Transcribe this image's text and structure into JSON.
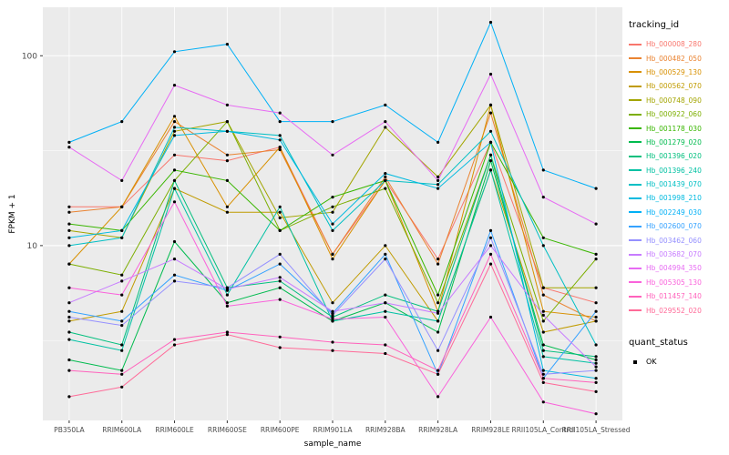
{
  "chart_data": {
    "type": "line",
    "title": "",
    "xlabel": "sample_name",
    "ylabel": "FPKM + 1",
    "yscale": "log10",
    "ylim": [
      1.2,
      180
    ],
    "yticks": [
      10,
      100
    ],
    "yticks_minor": [
      3.162,
      31.62
    ],
    "grid": true,
    "legend_position": "right",
    "panel_background": "#EBEBEB",
    "grid_color": "#FFFFFF",
    "axis_text_color": "#4D4D4D",
    "point_color": "#000000",
    "categories": [
      "PB350LA",
      "RRIM600LA",
      "RRIM600LE",
      "RRIM600SE",
      "RRIM600PE",
      "RRIM901LA",
      "RRIM928BA",
      "RRIM928LA",
      "RRIM928LE",
      "RRII105LA_Control",
      "RRII105LA_Stressed"
    ],
    "series": [
      {
        "name": "Hb_000008_280",
        "color": "#F8766D",
        "values": [
          16,
          16,
          30,
          28,
          33,
          9,
          22,
          8.5,
          35,
          6,
          5
        ]
      },
      {
        "name": "Hb_000482_050",
        "color": "#EA8331",
        "values": [
          15,
          16,
          45,
          30,
          32,
          9,
          23,
          8,
          50,
          5.5,
          4
        ]
      },
      {
        "name": "Hb_000529_130",
        "color": "#D89000",
        "values": [
          8,
          16,
          48,
          16,
          33,
          8.5,
          22,
          4.5,
          55,
          4.5,
          4.2
        ]
      },
      {
        "name": "Hb_000562_070",
        "color": "#C09B00",
        "values": [
          4,
          4.5,
          20,
          15,
          15,
          5,
          10,
          4,
          25,
          3.5,
          4
        ]
      },
      {
        "name": "Hb_000748_090",
        "color": "#A3A500",
        "values": [
          12,
          11,
          40,
          45,
          14,
          15,
          42,
          23,
          55,
          6,
          6
        ]
      },
      {
        "name": "Hb_000922_060",
        "color": "#7CAE00",
        "values": [
          8,
          7,
          22,
          45,
          12,
          16,
          20,
          5,
          30,
          4,
          8.5
        ]
      },
      {
        "name": "Hb_001178_030",
        "color": "#39B600",
        "values": [
          13,
          12,
          25,
          22,
          12,
          18,
          22,
          5.5,
          35,
          11,
          9
        ]
      },
      {
        "name": "Hb_001279_020",
        "color": "#00BB4E",
        "values": [
          2.5,
          2.2,
          10.5,
          5,
          6,
          4,
          5,
          3.5,
          28,
          3,
          2.5
        ]
      },
      {
        "name": "Hb_001396_020",
        "color": "#00BF7D",
        "values": [
          3.5,
          3,
          22,
          6,
          6.5,
          4.2,
          5.5,
          4.5,
          30,
          2.8,
          2.6
        ]
      },
      {
        "name": "Hb_001396_240",
        "color": "#00C1A3",
        "values": [
          3.2,
          2.8,
          20,
          5.5,
          16,
          4,
          4.5,
          4,
          25,
          2.6,
          2.4
        ]
      },
      {
        "name": "Hb_001439_070",
        "color": "#00BFC4",
        "values": [
          10,
          11,
          42,
          40,
          38,
          12,
          22,
          21,
          40,
          10,
          3
        ]
      },
      {
        "name": "Hb_001998_210",
        "color": "#00BAE0",
        "values": [
          11,
          12,
          38,
          40,
          36,
          13,
          24,
          20,
          35,
          2.2,
          2
        ]
      },
      {
        "name": "Hb_002249_030",
        "color": "#00B0F6",
        "values": [
          35,
          45,
          105,
          115,
          45,
          45,
          55,
          35,
          150,
          25,
          20
        ]
      },
      {
        "name": "Hb_002600_070",
        "color": "#35A2FF",
        "values": [
          4.5,
          4,
          7,
          5.8,
          8,
          4.4,
          9,
          2.1,
          12,
          2,
          4.5
        ]
      },
      {
        "name": "Hb_003462_060",
        "color": "#9590FF",
        "values": [
          4.2,
          3.8,
          6.5,
          6,
          9,
          4.3,
          8.5,
          2.8,
          11,
          2.1,
          2.2
        ]
      },
      {
        "name": "Hb_003682_070",
        "color": "#C77CFF",
        "values": [
          5,
          6.5,
          8.5,
          5.9,
          6.8,
          4.5,
          5,
          4.4,
          10,
          4.3,
          2.3
        ]
      },
      {
        "name": "Hb_004994_350",
        "color": "#E76BF3",
        "values": [
          33,
          22,
          70,
          55,
          50,
          30,
          45,
          22,
          80,
          18,
          13
        ]
      },
      {
        "name": "Hb_005305_130",
        "color": "#FA62DB",
        "values": [
          6,
          5.5,
          17,
          4.8,
          5.2,
          4.1,
          4.2,
          1.6,
          4.2,
          1.5,
          1.3
        ]
      },
      {
        "name": "Hb_011457_140",
        "color": "#FF62BC",
        "values": [
          2.2,
          2.1,
          3.2,
          3.5,
          3.3,
          3.1,
          3,
          2.2,
          9,
          2,
          1.9
        ]
      },
      {
        "name": "Hb_029552_020",
        "color": "#FF6A98",
        "values": [
          1.6,
          1.8,
          3,
          3.4,
          2.9,
          2.8,
          2.7,
          2.1,
          8,
          1.9,
          1.7
        ]
      }
    ]
  },
  "legend": {
    "tracking_title": "tracking_id",
    "quant_title": "quant_status",
    "quant_label": "OK"
  }
}
